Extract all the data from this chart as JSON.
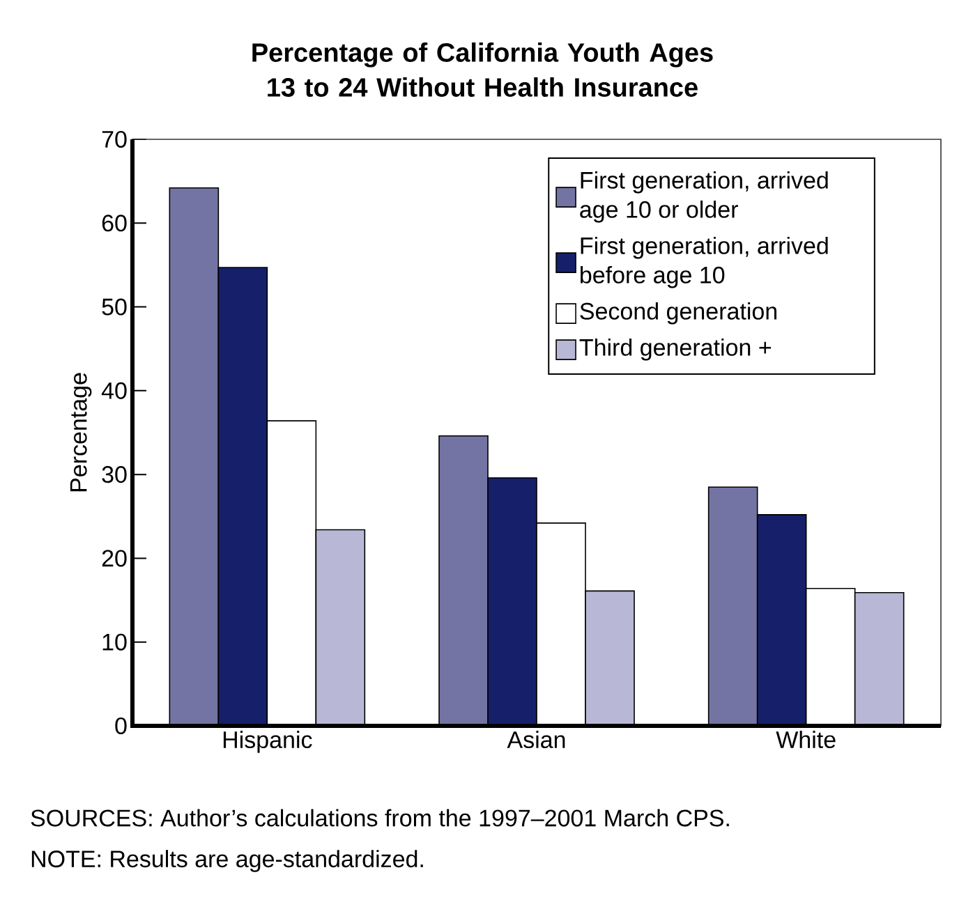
{
  "chart_data": {
    "type": "bar",
    "title": "Percentage of California Youth Ages 13 to 24 Without Health Insurance",
    "ylabel": "Percentage",
    "categories": [
      "Hispanic",
      "Asian",
      "White"
    ],
    "series": [
      {
        "name": "First generation, arrived age 10 or older",
        "color": "#7474a4",
        "values": [
          64.2,
          34.6,
          28.5
        ]
      },
      {
        "name": "First generation, arrived before age 10",
        "color": "#16206a",
        "values": [
          54.7,
          29.6,
          25.2
        ]
      },
      {
        "name": "Second generation",
        "color": "#ffffff",
        "values": [
          36.4,
          24.2,
          16.4
        ]
      },
      {
        "name": "Third generation +",
        "color": "#b8b8d6",
        "values": [
          23.4,
          16.1,
          15.9
        ]
      }
    ],
    "ylim": [
      0,
      70
    ],
    "yticks": [
      0,
      10,
      20,
      30,
      40,
      50,
      60,
      70
    ],
    "legend": "top right",
    "grid": false,
    "annotations": [
      "SOURCES: Author’s calculations from the 1997–2001 March CPS.",
      "NOTE: Results are age-standardized."
    ]
  }
}
